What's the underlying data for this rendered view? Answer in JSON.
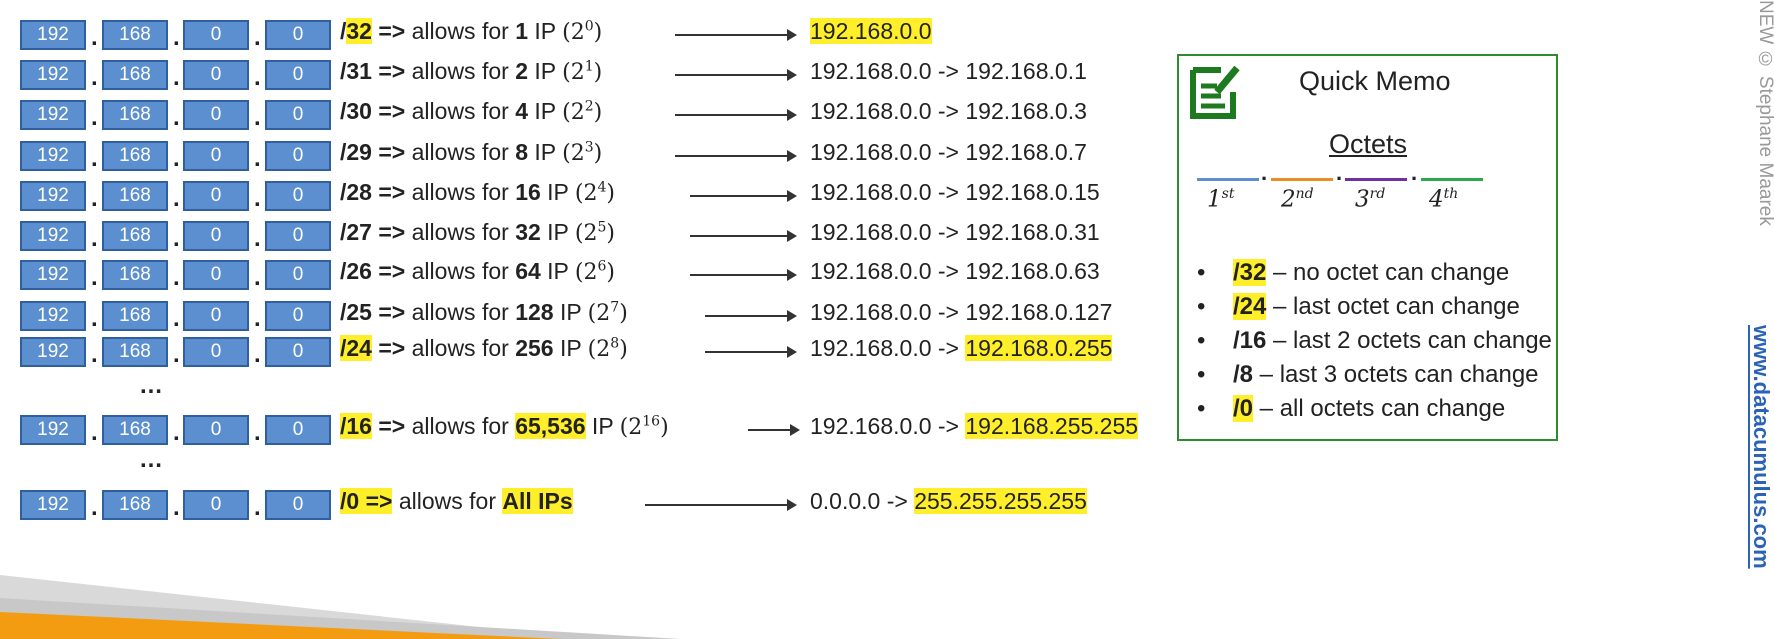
{
  "octets": [
    "192",
    "168",
    "0",
    "0"
  ],
  "dot": ".",
  "rows": [
    {
      "slash": "/",
      "prefix": "32",
      "arrow_text": " =>",
      "allows": " allows for ",
      "count": "1",
      "ip": " IP ",
      "base": "2",
      "exp": "0",
      "range_start": "192.168.0.0",
      "range_end": ""
    },
    {
      "slash": "/",
      "prefix": "31",
      "arrow_text": " =>",
      "allows": " allows for ",
      "count": "2",
      "ip": " IP ",
      "base": "2",
      "exp": "1",
      "range_start": "192.168.0.0 -> ",
      "range_end": "192.168.0.1"
    },
    {
      "slash": "/",
      "prefix": "30",
      "arrow_text": " =>",
      "allows": " allows for ",
      "count": "4",
      "ip": " IP ",
      "base": "2",
      "exp": "2",
      "range_start": "192.168.0.0 -> ",
      "range_end": "192.168.0.3"
    },
    {
      "slash": "/",
      "prefix": "29",
      "arrow_text": " =>",
      "allows": " allows for ",
      "count": "8",
      "ip": " IP ",
      "base": "2",
      "exp": "3",
      "range_start": "192.168.0.0 -> ",
      "range_end": "192.168.0.7"
    },
    {
      "slash": "/",
      "prefix": "28",
      "arrow_text": " =>",
      "allows": " allows for ",
      "count": "16",
      "ip": " IP ",
      "base": "2",
      "exp": "4",
      "range_start": "192.168.0.0 -> ",
      "range_end": "192.168.0.15"
    },
    {
      "slash": "/",
      "prefix": "27",
      "arrow_text": " =>",
      "allows": " allows for ",
      "count": "32",
      "ip": " IP ",
      "base": "2",
      "exp": "5",
      "range_start": "192.168.0.0 -> ",
      "range_end": "192.168.0.31"
    },
    {
      "slash": "/",
      "prefix": "26",
      "arrow_text": " =>",
      "allows": " allows for ",
      "count": "64",
      "ip": " IP ",
      "base": "2",
      "exp": "6",
      "range_start": "192.168.0.0 -> ",
      "range_end": "192.168.0.63"
    },
    {
      "slash": "/",
      "prefix": "25",
      "arrow_text": " =>",
      "allows": " allows for ",
      "count": "128",
      "ip": " IP ",
      "base": "2",
      "exp": "7",
      "range_start": "192.168.0.0 -> ",
      "range_end": "192.168.0.127"
    },
    {
      "slash": "/",
      "prefix": "24",
      "arrow_text": " =>",
      "allows": " allows for ",
      "count": "256",
      "ip": " IP ",
      "base": "2",
      "exp": "8",
      "range_start": "192.168.0.0 -> ",
      "range_end": "192.168.0.255"
    },
    {
      "slash": "/",
      "prefix": "16",
      "arrow_text": " =>",
      "allows": " allows for ",
      "count": "65,536",
      "ip": " IP ",
      "base": "2",
      "exp": "16",
      "range_start": "192.168.0.0 -> ",
      "range_end": "192.168.255.255"
    },
    {
      "slash": "/",
      "prefix": "0",
      "arrow_text": " =>",
      "allows": " allows for ",
      "count": "All IPs",
      "ip": "",
      "base": "",
      "exp": "",
      "range_start": "0.0.0.0 -> ",
      "range_end": "255.255.255.255"
    }
  ],
  "ellipsis": "…",
  "memo": {
    "title": "Quick Memo",
    "octets_title": "Octets",
    "octet_labels": [
      {
        "n": "1",
        "sup": "st"
      },
      {
        "n": "2",
        "sup": "nd"
      },
      {
        "n": "3",
        "sup": "rd"
      },
      {
        "n": "4",
        "sup": "th"
      }
    ],
    "octet_colors": [
      "#5b8fd0",
      "#ed8b25",
      "#7030a0",
      "#2ea84c"
    ],
    "bullets": [
      {
        "prefix": "/32",
        "text": " – no octet can change"
      },
      {
        "prefix": "/24",
        "text": " – last octet can change"
      },
      {
        "prefix": "/16",
        "text": " – last 2 octets can change"
      },
      {
        "prefix": "/8",
        "text": " – last 3 octets can change"
      },
      {
        "prefix": "/0",
        "text": " – all octets can change"
      }
    ],
    "bullet_char": "•",
    "icon": "note-edit-icon",
    "border_color": "#2e8b2e"
  },
  "side": {
    "grey_text": "NEW © Stephane Maarek",
    "blue_text": "www.datacumulus.com"
  },
  "colors": {
    "octet_fill": "#5b8fd0",
    "highlight": "#ffee2a",
    "accent_orange": "#f39c12"
  }
}
